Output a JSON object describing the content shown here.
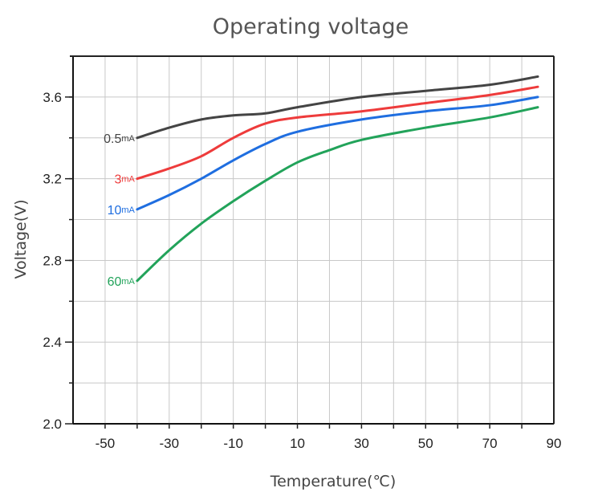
{
  "chart_data": {
    "type": "line",
    "title": "Operating voltage",
    "xlabel": "Temperature(℃)",
    "ylabel": "Voltage(V)",
    "xlim": [
      -60,
      90
    ],
    "ylim": [
      2.0,
      3.8
    ],
    "x_ticks": [
      -50,
      -30,
      -10,
      10,
      30,
      50,
      70,
      90
    ],
    "x_tick_labels": [
      "-50",
      "-30",
      "-10",
      "10",
      "30",
      "50",
      "70",
      "90"
    ],
    "y_ticks": [
      2.0,
      2.4,
      2.8,
      3.2,
      3.6
    ],
    "y_tick_labels": [
      "2.0",
      "2.4",
      "2.8",
      "3.2",
      "3.6"
    ],
    "grid": true,
    "series": [
      {
        "name": "0.5mA",
        "label_value": "0.5",
        "label_unit": "mA",
        "color": "#444444",
        "x": [
          -40,
          -30,
          -20,
          -10,
          0,
          10,
          30,
          50,
          70,
          85
        ],
        "values": [
          3.4,
          3.45,
          3.49,
          3.51,
          3.52,
          3.55,
          3.6,
          3.63,
          3.66,
          3.7
        ]
      },
      {
        "name": "3mA",
        "label_value": "3",
        "label_unit": "mA",
        "color": "#ee3b3b",
        "x": [
          -40,
          -30,
          -20,
          -10,
          0,
          10,
          30,
          50,
          70,
          85
        ],
        "values": [
          3.2,
          3.25,
          3.31,
          3.4,
          3.47,
          3.5,
          3.53,
          3.57,
          3.61,
          3.65
        ]
      },
      {
        "name": "10mA",
        "label_value": "10",
        "label_unit": "mA",
        "color": "#1f6ee0",
        "x": [
          -40,
          -30,
          -20,
          -10,
          0,
          10,
          30,
          50,
          70,
          85
        ],
        "values": [
          3.05,
          3.12,
          3.2,
          3.29,
          3.37,
          3.43,
          3.49,
          3.53,
          3.56,
          3.6
        ]
      },
      {
        "name": "60mA",
        "label_value": "60",
        "label_unit": "mA",
        "color": "#22a35a",
        "x": [
          -40,
          -30,
          -20,
          -10,
          0,
          10,
          20,
          30,
          50,
          70,
          85
        ],
        "values": [
          2.7,
          2.85,
          2.98,
          3.09,
          3.19,
          3.28,
          3.34,
          3.39,
          3.45,
          3.5,
          3.55
        ]
      }
    ]
  }
}
